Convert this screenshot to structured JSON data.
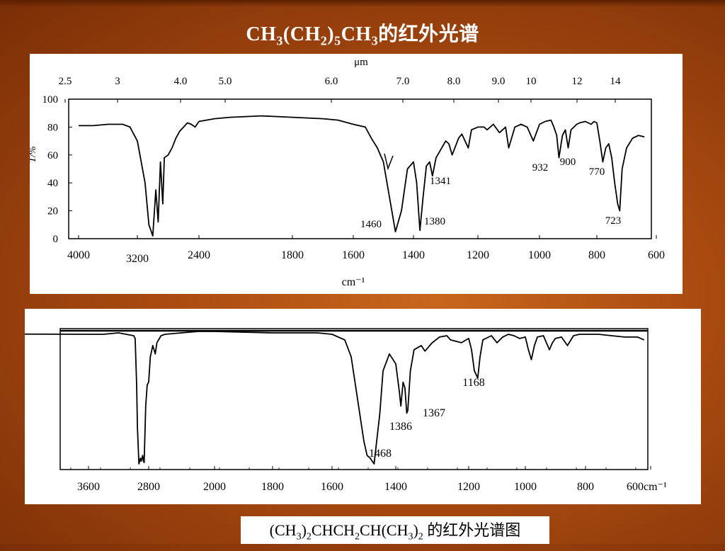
{
  "slide": {
    "title_parts": [
      "CH",
      "3",
      "(CH",
      "2",
      ")",
      "5",
      "CH",
      "3",
      "的红外光谱"
    ],
    "caption_parts": [
      "(CH",
      "3",
      ")",
      "2",
      "CHCH",
      "2",
      "CH(CH",
      "3",
      ")",
      "2",
      " 的红外光谱图"
    ]
  },
  "colors": {
    "background": "#a84a10",
    "panel": "#ffffff",
    "line": "#000000",
    "title": "#ffffff"
  },
  "chart_data": [
    {
      "type": "line",
      "title": "CH3(CH2)5CH3的红外光谱",
      "xlabel": "cm⁻¹",
      "top_axis_label": "μm",
      "ylabel": "T/%",
      "x_ticks": [
        "4000",
        "3200",
        "2400",
        "1800",
        "1600",
        "1400",
        "1200",
        "1000",
        "800",
        "600"
      ],
      "top_ticks": [
        "2.5",
        "3",
        "4.0",
        "5.0",
        "6.0",
        "7.0",
        "8.0",
        "9.0",
        "10",
        "12",
        "14"
      ],
      "y_ticks": [
        "100",
        "80",
        "60",
        "40",
        "20",
        "0"
      ],
      "ylim": [
        0,
        100
      ],
      "annotations": [
        {
          "text": "1460",
          "x": 1460,
          "y": 5
        },
        {
          "text": "1380",
          "x": 1380,
          "y": 6
        },
        {
          "text": "1341",
          "x": 1341,
          "y": 45
        },
        {
          "text": "932",
          "x": 932,
          "y": 58
        },
        {
          "text": "900",
          "x": 900,
          "y": 60
        },
        {
          "text": "770",
          "x": 770,
          "y": 55
        },
        {
          "text": "723",
          "x": 723,
          "y": 22
        }
      ],
      "series": [
        {
          "x": [
            4000,
            3800,
            3600,
            3400,
            3300,
            3200,
            3100,
            3050,
            3000,
            2960,
            2930,
            2900,
            2870,
            2850,
            2800,
            2750,
            2700,
            2650,
            2600,
            2550,
            2500,
            2450,
            2400,
            2300,
            2200,
            2000,
            1800,
            1700,
            1650,
            1600,
            1560,
            1540,
            1520,
            1500,
            1480,
            1460,
            1440,
            1420,
            1400,
            1390,
            1380,
            1370,
            1360,
            1350,
            1341,
            1330,
            1320,
            1300,
            1290,
            1280,
            1260,
            1250,
            1230,
            1220,
            1200,
            1180,
            1170,
            1150,
            1130,
            1110,
            1100,
            1080,
            1060,
            1040,
            1020,
            1000,
            980,
            960,
            950,
            940,
            932,
            920,
            910,
            900,
            890,
            880,
            870,
            860,
            840,
            820,
            810,
            800,
            790,
            780,
            770,
            760,
            750,
            740,
            730,
            723,
            715,
            700,
            680,
            660,
            640
          ],
          "y": [
            81,
            81,
            82,
            82,
            80,
            70,
            40,
            10,
            2,
            35,
            12,
            55,
            25,
            58,
            60,
            65,
            72,
            77,
            80,
            83,
            82,
            80,
            84,
            86,
            87,
            88,
            87,
            86,
            85,
            82,
            80,
            72,
            65,
            55,
            30,
            5,
            20,
            50,
            55,
            40,
            6,
            30,
            52,
            55,
            45,
            58,
            62,
            70,
            68,
            60,
            72,
            75,
            65,
            78,
            80,
            80,
            78,
            82,
            76,
            80,
            65,
            80,
            82,
            80,
            70,
            82,
            84,
            85,
            80,
            74,
            58,
            74,
            78,
            65,
            78,
            80,
            82,
            83,
            84,
            82,
            84,
            83,
            70,
            55,
            65,
            68,
            58,
            40,
            25,
            20,
            50,
            65,
            72,
            74,
            73
          ]
        }
      ]
    },
    {
      "type": "line",
      "title": "",
      "xlabel": "cm⁻¹",
      "x_ticks": [
        "3600",
        "2800",
        "2000",
        "1800",
        "1600",
        "1400",
        "1200",
        "1000",
        "800",
        "600cm⁻¹"
      ],
      "annotations": [
        {
          "text": "1468",
          "x": 1468,
          "y": 8
        },
        {
          "text": "1386",
          "x": 1386,
          "y": 38
        },
        {
          "text": "1367",
          "x": 1367,
          "y": 36
        },
        {
          "text": "1168",
          "x": 1168,
          "y": 68
        }
      ],
      "series": [
        {
          "x": [
            3700,
            3600,
            3400,
            3200,
            3100,
            3000,
            2980,
            2960,
            2950,
            2930,
            2910,
            2900,
            2880,
            2870,
            2860,
            2850,
            2840,
            2820,
            2800,
            2780,
            2750,
            2720,
            2700,
            2650,
            2600,
            2400,
            2200,
            2000,
            1800,
            1650,
            1600,
            1560,
            1540,
            1520,
            1500,
            1490,
            1480,
            1468,
            1450,
            1440,
            1420,
            1400,
            1390,
            1386,
            1380,
            1375,
            1370,
            1367,
            1360,
            1350,
            1330,
            1320,
            1300,
            1290,
            1280,
            1260,
            1250,
            1220,
            1200,
            1190,
            1180,
            1168,
            1160,
            1150,
            1120,
            1100,
            1080,
            1060,
            1040,
            1020,
            1000,
            990,
            980,
            970,
            960,
            940,
            920,
            910,
            900,
            880,
            860,
            840,
            820,
            800,
            760,
            720,
            680,
            640,
            620
          ],
          "y": [
            97,
            96,
            96,
            97,
            96,
            95,
            93,
            60,
            30,
            4,
            8,
            6,
            10,
            6,
            5,
            25,
            45,
            60,
            62,
            80,
            88,
            82,
            90,
            95,
            96,
            97,
            98,
            98,
            97,
            97,
            96,
            92,
            80,
            50,
            20,
            10,
            8,
            4,
            40,
            70,
            82,
            75,
            55,
            45,
            62,
            58,
            40,
            42,
            70,
            85,
            88,
            84,
            90,
            92,
            94,
            95,
            92,
            90,
            93,
            85,
            70,
            65,
            80,
            92,
            95,
            90,
            94,
            96,
            95,
            93,
            94,
            85,
            78,
            88,
            94,
            95,
            85,
            90,
            93,
            94,
            88,
            95,
            96,
            96,
            96,
            95,
            94,
            94,
            92
          ]
        }
      ]
    }
  ]
}
